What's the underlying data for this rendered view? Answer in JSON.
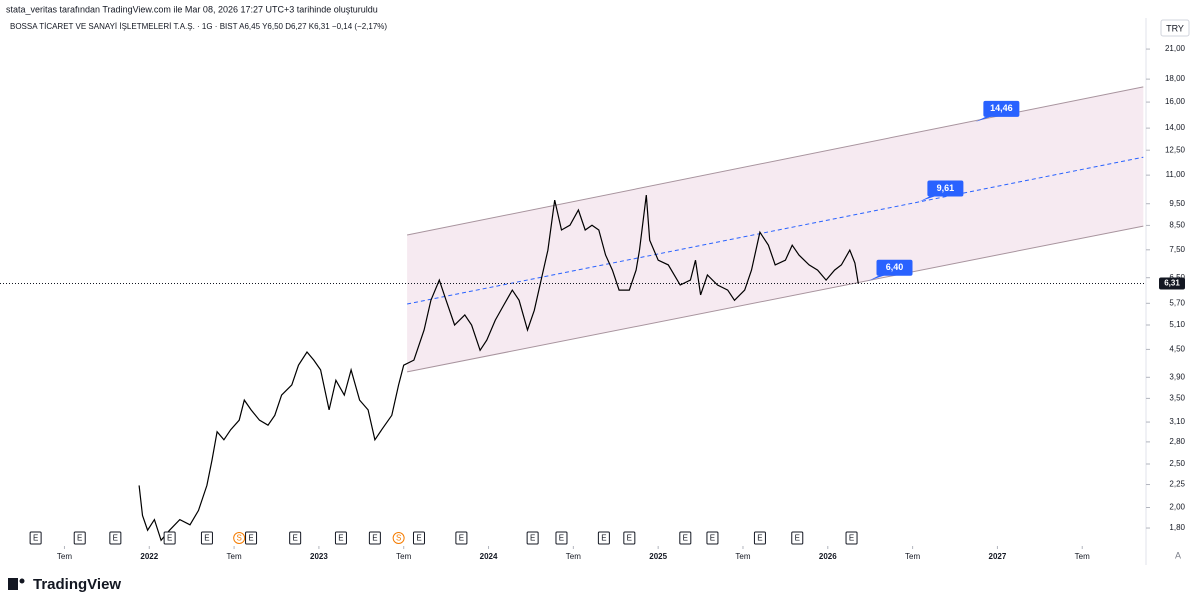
{
  "header": {
    "attribution": "stata_veritas tarafından TradingView.com ile Mar 08, 2026 17:27 UTC+3 tarihinde oluşturuldu",
    "symbol_info": "BOSSA TİCARET VE SANAYİ İŞLETMELERİ T.A.Ş. · 1G · BIST  A6,45  Y6,50  D6,27  K6,31  −0,14 (−2,17%)",
    "logo": "TradingView"
  },
  "chart_data": {
    "type": "line",
    "currency": "TRY",
    "log_scale": true,
    "color": "#000000",
    "x": [
      2021.94,
      2021.96,
      2021.99,
      2022.03,
      2022.07,
      2022.12,
      2022.18,
      2022.24,
      2022.29,
      2022.34,
      2022.37,
      2022.4,
      2022.44,
      2022.48,
      2022.53,
      2022.56,
      2022.6,
      2022.65,
      2022.7,
      2022.74,
      2022.78,
      2022.84,
      2022.88,
      2022.93,
      2022.97,
      2023.01,
      2023.06,
      2023.1,
      2023.15,
      2023.19,
      2023.24,
      2023.29,
      2023.33,
      2023.37,
      2023.43,
      2023.47,
      2023.5,
      2023.56,
      2023.62,
      2023.66,
      2023.71,
      2023.75,
      2023.8,
      2023.86,
      2023.9,
      2023.95,
      2023.99,
      2024.04,
      2024.09,
      2024.14,
      2024.18,
      2024.23,
      2024.27,
      2024.31,
      2024.35,
      2024.39,
      2024.43,
      2024.48,
      2024.53,
      2024.57,
      2024.61,
      2024.65,
      2024.69,
      2024.73,
      2024.77,
      2024.83,
      2024.87,
      2024.89,
      2024.93,
      2024.95,
      2025.0,
      2025.06,
      2025.13,
      2025.19,
      2025.22,
      2025.25,
      2025.29,
      2025.35,
      2025.41,
      2025.45,
      2025.51,
      2025.55,
      2025.6,
      2025.65,
      2025.69,
      2025.75,
      2025.79,
      2025.83,
      2025.89,
      2025.94,
      2025.99,
      2026.04,
      2026.08,
      2026.13,
      2026.16,
      2026.18
    ],
    "values": [
      2.24,
      1.92,
      1.78,
      1.88,
      1.69,
      1.78,
      1.88,
      1.83,
      1.97,
      2.24,
      2.55,
      2.95,
      2.83,
      2.98,
      3.13,
      3.47,
      3.3,
      3.13,
      3.05,
      3.21,
      3.56,
      3.75,
      4.15,
      4.44,
      4.26,
      4.05,
      3.3,
      3.84,
      3.56,
      4.05,
      3.47,
      3.3,
      2.83,
      2.98,
      3.21,
      3.75,
      4.15,
      4.26,
      4.97,
      5.79,
      6.42,
      5.79,
      5.1,
      5.37,
      5.1,
      4.48,
      4.72,
      5.23,
      5.65,
      6.1,
      5.79,
      4.97,
      5.5,
      6.42,
      7.49,
      9.68,
      8.3,
      8.51,
      9.2,
      8.3,
      8.51,
      8.3,
      7.3,
      6.76,
      6.1,
      6.1,
      6.76,
      7.49,
      9.93,
      7.88,
      7.11,
      6.94,
      6.26,
      6.42,
      7.11,
      5.95,
      6.59,
      6.26,
      6.1,
      5.79,
      6.1,
      6.76,
      8.21,
      7.68,
      6.94,
      7.11,
      7.68,
      7.3,
      6.94,
      6.76,
      6.42,
      6.76,
      6.94,
      7.49,
      7.01,
      6.31
    ],
    "xlim": [
      2021.12,
      2027.87
    ],
    "xticks": [
      {
        "value": 2021.5,
        "label": "Tem"
      },
      2022,
      {
        "value": 2022.5,
        "label": "Tem"
      },
      2023,
      {
        "value": 2023.5,
        "label": "Tem"
      },
      2024,
      {
        "value": 2024.5,
        "label": "Tem"
      },
      2025,
      {
        "value": 2025.5,
        "label": "Tem"
      },
      2026,
      {
        "value": 2026.5,
        "label": "Tem"
      },
      2027,
      {
        "value": 2027.5,
        "label": "Tem"
      }
    ],
    "ylim": [
      1.65,
      22
    ],
    "yticks": [
      {
        "value": 1.8,
        "label": "1,80"
      },
      {
        "value": 2,
        "label": "2,00"
      },
      {
        "value": 2.25,
        "label": "2,25"
      },
      {
        "value": 2.5,
        "label": "2,50"
      },
      {
        "value": 2.8,
        "label": "2,80"
      },
      {
        "value": 3.1,
        "label": "3,10"
      },
      {
        "value": 3.5,
        "label": "3,50"
      },
      {
        "value": 3.9,
        "label": "3,90"
      },
      {
        "value": 4.5,
        "label": "4,50"
      },
      {
        "value": 5.1,
        "label": "5,10"
      },
      {
        "value": 5.7,
        "label": "5,70"
      },
      {
        "value": 6.5,
        "label": "6,50"
      },
      {
        "value": 7.5,
        "label": "7,50"
      },
      {
        "value": 8.5,
        "label": "8,50"
      },
      {
        "value": 9.5,
        "label": "9,50"
      },
      {
        "value": 11,
        "label": "11,00"
      },
      {
        "value": 12.5,
        "label": "12,50"
      },
      {
        "value": 14,
        "label": "14,00"
      },
      {
        "value": 16,
        "label": "16,00"
      },
      {
        "value": 18,
        "label": "18,00"
      },
      {
        "value": 21,
        "label": "21,00"
      }
    ],
    "last_price": {
      "value": 6.31,
      "label": "6,31"
    },
    "channel": {
      "fill": "#f6eaf1",
      "line_color": "#a8949e",
      "mid_color": "#2962ff",
      "upper": {
        "x": [
          2023.52,
          2027.86
        ],
        "values": [
          8.09,
          17.3
        ]
      },
      "middle": {
        "x": [
          2023.52,
          2027.86
        ],
        "values": [
          5.68,
          12.06
        ]
      },
      "lower": {
        "x": [
          2023.52,
          2027.86
        ],
        "values": [
          4.01,
          8.47
        ]
      }
    },
    "label_color": "#2962ff",
    "channel_labels": [
      {
        "x": 2026.87,
        "value": 14.46,
        "label": "14,46"
      },
      {
        "x": 2026.54,
        "value": 9.61,
        "label": "9,61"
      },
      {
        "x": 2026.24,
        "value": 6.4,
        "label": "6,40"
      }
    ],
    "events": [
      {
        "x": 2021.33,
        "label": "E"
      },
      {
        "x": 2021.59,
        "label": "E"
      },
      {
        "x": 2021.8,
        "label": "E"
      },
      {
        "x": 2022.12,
        "label": "E"
      },
      {
        "x": 2022.34,
        "label": "E"
      },
      {
        "x": 2022.53,
        "label": "S"
      },
      {
        "x": 2022.6,
        "label": "E"
      },
      {
        "x": 2022.86,
        "label": "E"
      },
      {
        "x": 2023.13,
        "label": "E"
      },
      {
        "x": 2023.33,
        "label": "E"
      },
      {
        "x": 2023.47,
        "label": "S"
      },
      {
        "x": 2023.59,
        "label": "E"
      },
      {
        "x": 2023.84,
        "label": "E"
      },
      {
        "x": 2024.26,
        "label": "E"
      },
      {
        "x": 2024.43,
        "label": "E"
      },
      {
        "x": 2024.68,
        "label": "E"
      },
      {
        "x": 2024.83,
        "label": "E"
      },
      {
        "x": 2025.16,
        "label": "E"
      },
      {
        "x": 2025.32,
        "label": "E"
      },
      {
        "x": 2025.6,
        "label": "E"
      },
      {
        "x": 2025.82,
        "label": "E"
      },
      {
        "x": 2026.14,
        "label": "E"
      }
    ]
  }
}
